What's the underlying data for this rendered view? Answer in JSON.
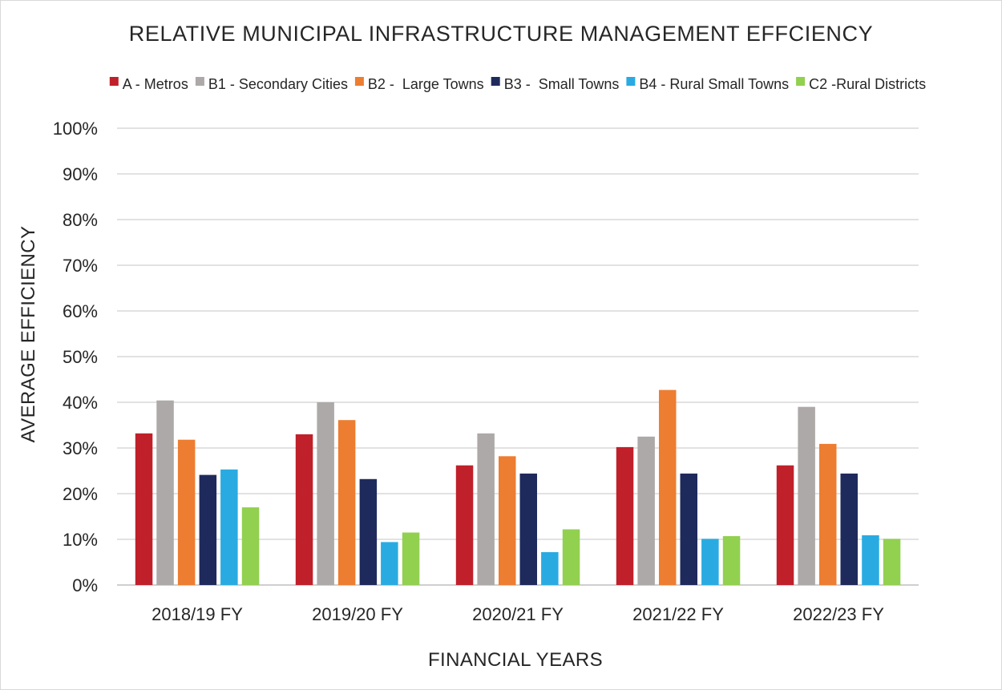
{
  "chart_data": {
    "type": "bar",
    "title": "RELATIVE MUNICIPAL  INFRASTRUCTURE MANAGEMENT  EFFCIENCY",
    "xlabel": "FINANCIAL YEARS",
    "ylabel": "AVERAGE  EFFICIENCY",
    "ylim": [
      0,
      100
    ],
    "y_tick_values": [
      0,
      10,
      20,
      30,
      40,
      50,
      60,
      70,
      80,
      90,
      100
    ],
    "y_tick_labels": [
      "0%",
      "10%",
      "20%",
      "30%",
      "40%",
      "50%",
      "60%",
      "70%",
      "80%",
      "90%",
      "100%"
    ],
    "grid": true,
    "legend_position": "top",
    "categories": [
      "2018/19 FY",
      "2019/20 FY",
      "2020/21 FY",
      "2021/22 FY",
      "2022/23 FY"
    ],
    "series": [
      {
        "name": "A - Metros",
        "color": "#C0202A",
        "values": [
          33.2,
          33.0,
          26.2,
          30.2,
          26.2
        ]
      },
      {
        "name": "B1 - Secondary Cities",
        "color": "#ADA9A8",
        "values": [
          40.4,
          40.0,
          33.2,
          32.5,
          39.0
        ]
      },
      {
        "name": "B2 -  Large Towns",
        "color": "#ED7D31",
        "values": [
          31.8,
          36.1,
          28.2,
          42.7,
          30.9
        ]
      },
      {
        "name": "B3 -  Small Towns",
        "color": "#1F2A5C",
        "values": [
          24.1,
          23.2,
          24.4,
          24.4,
          24.4
        ]
      },
      {
        "name": "B4 - Rural Small Towns",
        "color": "#29ABE2",
        "values": [
          25.3,
          9.4,
          7.2,
          10.1,
          10.9
        ]
      },
      {
        "name": "C2 -Rural Districts",
        "color": "#92D050",
        "values": [
          17.0,
          11.5,
          12.2,
          10.7,
          10.1
        ]
      }
    ]
  },
  "colors": {
    "gridline": "#d9d9d9",
    "axis": "#bfbfbf",
    "text": "#262626"
  }
}
